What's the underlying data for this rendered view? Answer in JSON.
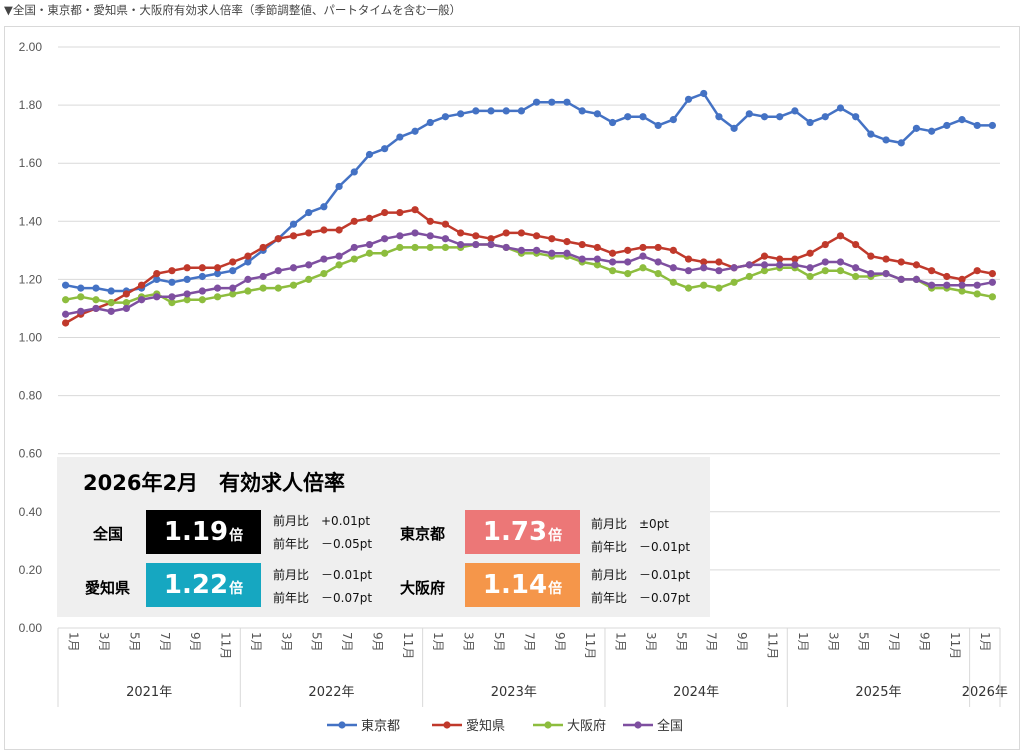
{
  "caption": "▼全国・東京都・愛知県・大阪府有効求人倍率（季節調整値、パートタイムを含む一般）",
  "chart_data": {
    "type": "line",
    "ylim": [
      0,
      2.0
    ],
    "y_ticks": [
      "0.00",
      "0.20",
      "0.40",
      "0.60",
      "0.80",
      "1.00",
      "1.20",
      "1.40",
      "1.60",
      "1.80",
      "2.00"
    ],
    "grid": true,
    "legend_position": "bottom",
    "x_month_labels": [
      "1月",
      "3月",
      "5月",
      "7月",
      "9月",
      "11月",
      "1月",
      "3月",
      "5月",
      "7月",
      "9月",
      "11月",
      "1月",
      "3月",
      "5月",
      "7月",
      "9月",
      "11月",
      "1月",
      "3月",
      "5月",
      "7月",
      "9月",
      "11月",
      "1月",
      "3月",
      "5月",
      "7月",
      "9月",
      "11月",
      "1月"
    ],
    "x_year_labels": [
      "2021年",
      "2022年",
      "2023年",
      "2024年",
      "2025年",
      "2026年"
    ],
    "series": [
      {
        "name": "東京都",
        "color": "#4472c4",
        "values": [
          1.18,
          1.17,
          1.17,
          1.16,
          1.16,
          1.17,
          1.2,
          1.19,
          1.2,
          1.21,
          1.22,
          1.23,
          1.26,
          1.3,
          1.34,
          1.39,
          1.43,
          1.45,
          1.52,
          1.57,
          1.63,
          1.65,
          1.69,
          1.71,
          1.74,
          1.76,
          1.77,
          1.78,
          1.78,
          1.78,
          1.78,
          1.81,
          1.81,
          1.81,
          1.78,
          1.77,
          1.74,
          1.76,
          1.76,
          1.73,
          1.75,
          1.82,
          1.84,
          1.76,
          1.72,
          1.77,
          1.76,
          1.76,
          1.78,
          1.74,
          1.76,
          1.79,
          1.76,
          1.7,
          1.68,
          1.67,
          1.72,
          1.71,
          1.73,
          1.75,
          1.73,
          1.73
        ]
      },
      {
        "name": "愛知県",
        "color": "#c0392b",
        "values": [
          1.05,
          1.08,
          1.1,
          1.12,
          1.15,
          1.18,
          1.22,
          1.23,
          1.24,
          1.24,
          1.24,
          1.26,
          1.28,
          1.31,
          1.34,
          1.35,
          1.36,
          1.37,
          1.37,
          1.4,
          1.41,
          1.43,
          1.43,
          1.44,
          1.4,
          1.39,
          1.36,
          1.35,
          1.34,
          1.36,
          1.36,
          1.35,
          1.34,
          1.33,
          1.32,
          1.31,
          1.29,
          1.3,
          1.31,
          1.31,
          1.3,
          1.27,
          1.26,
          1.26,
          1.24,
          1.25,
          1.28,
          1.27,
          1.27,
          1.29,
          1.32,
          1.35,
          1.32,
          1.28,
          1.27,
          1.26,
          1.25,
          1.23,
          1.21,
          1.2,
          1.23,
          1.22
        ]
      },
      {
        "name": "大阪府",
        "color": "#8dbd3e",
        "values": [
          1.13,
          1.14,
          1.13,
          1.12,
          1.12,
          1.14,
          1.15,
          1.12,
          1.13,
          1.13,
          1.14,
          1.15,
          1.16,
          1.17,
          1.17,
          1.18,
          1.2,
          1.22,
          1.25,
          1.27,
          1.29,
          1.29,
          1.31,
          1.31,
          1.31,
          1.31,
          1.31,
          1.32,
          1.32,
          1.31,
          1.29,
          1.29,
          1.28,
          1.28,
          1.26,
          1.25,
          1.23,
          1.22,
          1.24,
          1.22,
          1.19,
          1.17,
          1.18,
          1.17,
          1.19,
          1.21,
          1.23,
          1.24,
          1.24,
          1.21,
          1.23,
          1.23,
          1.21,
          1.21,
          1.22,
          1.2,
          1.2,
          1.17,
          1.17,
          1.16,
          1.15,
          1.14
        ]
      },
      {
        "name": "全国",
        "color": "#7e4fa0",
        "values": [
          1.08,
          1.09,
          1.1,
          1.09,
          1.1,
          1.13,
          1.14,
          1.14,
          1.15,
          1.16,
          1.17,
          1.17,
          1.2,
          1.21,
          1.23,
          1.24,
          1.25,
          1.27,
          1.28,
          1.31,
          1.32,
          1.34,
          1.35,
          1.36,
          1.35,
          1.34,
          1.32,
          1.32,
          1.32,
          1.31,
          1.3,
          1.3,
          1.29,
          1.29,
          1.27,
          1.27,
          1.26,
          1.26,
          1.28,
          1.26,
          1.24,
          1.23,
          1.24,
          1.23,
          1.24,
          1.25,
          1.25,
          1.25,
          1.25,
          1.24,
          1.26,
          1.26,
          1.24,
          1.22,
          1.22,
          1.2,
          1.2,
          1.18,
          1.18,
          1.18,
          1.18,
          1.19
        ]
      }
    ]
  },
  "summary": {
    "title": "2026年2月　有効求人倍率",
    "unit": "倍",
    "regions": [
      {
        "name": "全国",
        "value": "1.19",
        "color": "#000000",
        "mom_label": "前月比",
        "mom": "+0.01pt",
        "yoy_label": "前年比",
        "yoy": "－0.05pt"
      },
      {
        "name": "東京都",
        "value": "1.73",
        "color": "#ec7777",
        "mom_label": "前月比",
        "mom": "±0pt",
        "yoy_label": "前年比",
        "yoy": "－0.01pt"
      },
      {
        "name": "愛知県",
        "value": "1.22",
        "color": "#16a7c1",
        "mom_label": "前月比",
        "mom": "－0.01pt",
        "yoy_label": "前年比",
        "yoy": "－0.07pt"
      },
      {
        "name": "大阪府",
        "value": "1.14",
        "color": "#f5964a",
        "mom_label": "前月比",
        "mom": "－0.01pt",
        "yoy_label": "前年比",
        "yoy": "－0.07pt"
      }
    ]
  }
}
